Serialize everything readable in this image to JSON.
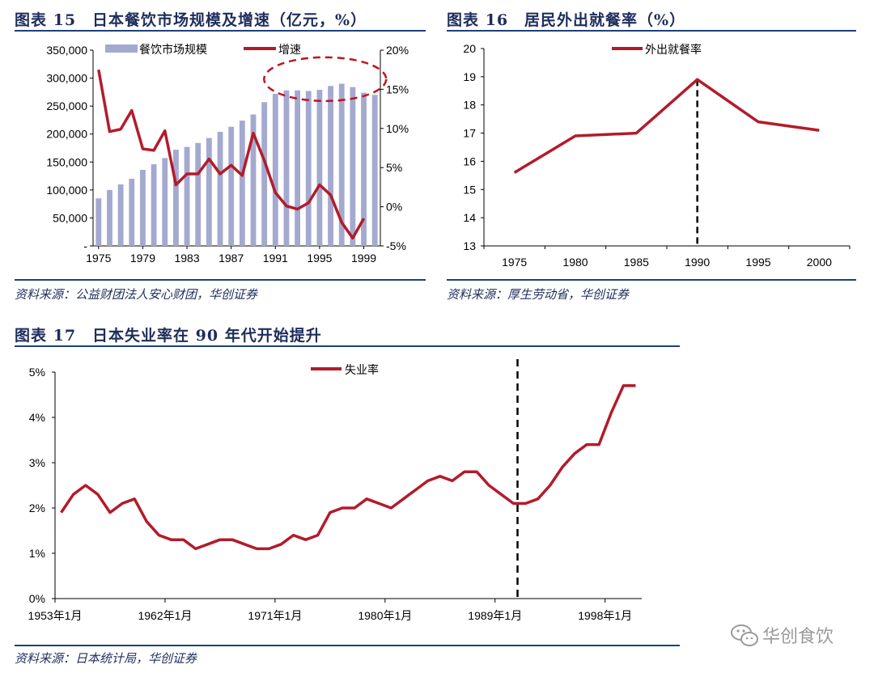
{
  "chart_data": [
    {
      "id": "fig15",
      "type": "bar",
      "title": "图表 15　日本餐饮市场规模及增速（亿元，%）",
      "source": "资料来源：公益财团法人安心财团，华创证券",
      "x": [
        1975,
        1976,
        1977,
        1978,
        1979,
        1980,
        1981,
        1982,
        1983,
        1984,
        1985,
        1986,
        1987,
        1988,
        1989,
        1990,
        1991,
        1992,
        1993,
        1994,
        1995,
        1996,
        1997,
        1998,
        1999,
        2000
      ],
      "x_tick_labels": [
        "1975",
        "1979",
        "1983",
        "1987",
        "1991",
        "1995",
        "1999"
      ],
      "bar_series": {
        "name": "餐饮市场规模",
        "color": "#a4a9cf",
        "values": [
          85000,
          100000,
          110000,
          120000,
          136000,
          146000,
          157000,
          172000,
          177000,
          184000,
          193000,
          204000,
          213000,
          224000,
          235000,
          257000,
          272000,
          278000,
          278000,
          277000,
          279000,
          286000,
          290000,
          284000,
          274000,
          270000
        ]
      },
      "line_series": {
        "name": "增速",
        "color": "#b31b2b",
        "values": [
          17.5,
          9.6,
          9.9,
          12.3,
          7.4,
          7.2,
          9.7,
          2.8,
          4.2,
          4.2,
          6.1,
          4.2,
          5.3,
          4.0,
          9.4,
          5.9,
          1.8,
          0.1,
          -0.3,
          0.5,
          2.8,
          1.5,
          -2.0,
          -4.0,
          -1.5
        ]
      },
      "y_left": {
        "range": [
          0,
          350000
        ],
        "ticks": [
          "-",
          "50,000",
          "100,000",
          "150,000",
          "200,000",
          "250,000",
          "300,000",
          "350,000"
        ]
      },
      "y_right": {
        "range": [
          -5,
          20
        ],
        "ticks": [
          "-5%",
          "0%",
          "5%",
          "10%",
          "15%",
          "20%"
        ]
      },
      "annotation": "dashed-ellipse-1991-2000"
    },
    {
      "id": "fig16",
      "type": "line",
      "title": "图表 16　居民外出就餐率（%）",
      "source": "资料来源：厚生劳动省，华创证券",
      "x": [
        1975,
        1980,
        1985,
        1990,
        1995,
        2000
      ],
      "series": [
        {
          "name": "外出就餐率",
          "color": "#b31b2b",
          "values": [
            15.6,
            16.9,
            17.0,
            18.9,
            17.4,
            17.1
          ]
        }
      ],
      "ylim": [
        13,
        20
      ],
      "y_ticks": [
        "13",
        "14",
        "15",
        "16",
        "17",
        "18",
        "19",
        "20"
      ],
      "x_ticks": [
        "1975",
        "1980",
        "1985",
        "1990",
        "1995",
        "2000"
      ],
      "marker_line_x": 1990
    },
    {
      "id": "fig17",
      "type": "line",
      "title": "图表 17　日本失业率在 90 年代开始提升",
      "source": "资料来源：日本统计局，华创证券",
      "x": [
        1953,
        1954,
        1955,
        1956,
        1957,
        1958,
        1959,
        1960,
        1961,
        1962,
        1963,
        1964,
        1965,
        1966,
        1967,
        1968,
        1969,
        1970,
        1971,
        1972,
        1973,
        1974,
        1975,
        1976,
        1977,
        1978,
        1979,
        1980,
        1981,
        1982,
        1983,
        1984,
        1985,
        1986,
        1987,
        1988,
        1989,
        1990,
        1991,
        1992,
        1993,
        1994,
        1995,
        1996,
        1997,
        1998,
        1999,
        2000
      ],
      "series": [
        {
          "name": "失业率",
          "color": "#b31b2b",
          "values": [
            1.9,
            2.3,
            2.5,
            2.3,
            1.9,
            2.1,
            2.2,
            1.7,
            1.4,
            1.3,
            1.3,
            1.1,
            1.2,
            1.3,
            1.3,
            1.2,
            1.1,
            1.1,
            1.2,
            1.4,
            1.3,
            1.4,
            1.9,
            2.0,
            2.0,
            2.2,
            2.1,
            2.0,
            2.2,
            2.4,
            2.6,
            2.7,
            2.6,
            2.8,
            2.8,
            2.5,
            2.3,
            2.1,
            2.1,
            2.2,
            2.5,
            2.9,
            3.2,
            3.4,
            3.4,
            4.1,
            4.7,
            4.7
          ]
        }
      ],
      "ylim": [
        0,
        5
      ],
      "y_ticks": [
        "0%",
        "1%",
        "2%",
        "3%",
        "4%",
        "5%"
      ],
      "x_ticks": [
        "1953年1月",
        "1962年1月",
        "1971年1月",
        "1980年1月",
        "1989年1月",
        "1998年1月"
      ],
      "x_tick_years": [
        1953,
        1962,
        1971,
        1980,
        1989,
        1998
      ],
      "marker_line_x": 1991
    }
  ],
  "watermark": "华创食饮"
}
